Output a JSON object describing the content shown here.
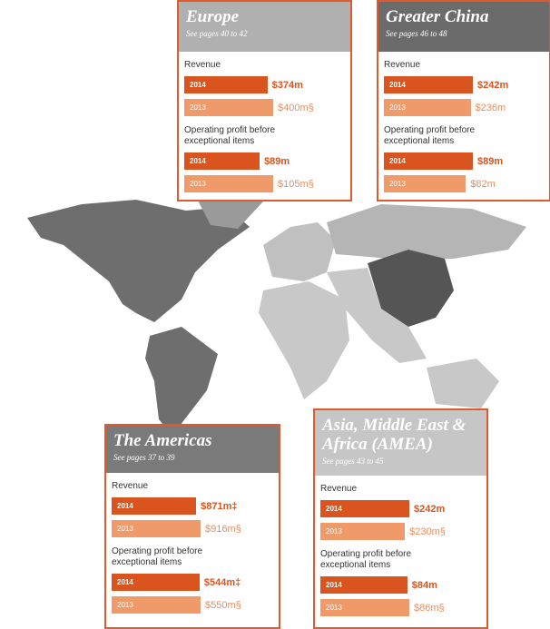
{
  "panels": [
    {
      "title": "Europe",
      "subtitle": "See pages 40 to 42",
      "metrics": [
        {
          "label": "Revenue",
          "years": [
            "2014",
            "2013"
          ],
          "values": [
            374,
            400
          ],
          "value_labels": [
            "$374m",
            "$400m§"
          ]
        },
        {
          "label": "Operating profit before exceptional items",
          "years": [
            "2014",
            "2013"
          ],
          "values": [
            89,
            105
          ],
          "value_labels": [
            "$89m",
            "$105m§"
          ]
        }
      ]
    },
    {
      "title": "Greater China",
      "subtitle": "See pages 46 to 48",
      "metrics": [
        {
          "label": "Revenue",
          "years": [
            "2014",
            "2013"
          ],
          "values": [
            242,
            236
          ],
          "value_labels": [
            "$242m",
            "$236m"
          ]
        },
        {
          "label": "Operating profit before exceptional items",
          "years": [
            "2014",
            "2013"
          ],
          "values": [
            89,
            82
          ],
          "value_labels": [
            "$89m",
            "$82m"
          ]
        }
      ]
    },
    {
      "title": "The Americas",
      "subtitle": "See pages 37 to 39",
      "metrics": [
        {
          "label": "Revenue",
          "years": [
            "2014",
            "2013"
          ],
          "values": [
            871,
            916
          ],
          "value_labels": [
            "$871m‡",
            "$916m§"
          ]
        },
        {
          "label": "Operating profit before exceptional items",
          "years": [
            "2014",
            "2013"
          ],
          "values": [
            544,
            550
          ],
          "value_labels": [
            "$544m‡",
            "$550m§"
          ]
        }
      ]
    },
    {
      "title": "Asia, Middle East & Africa (AMEA)",
      "subtitle": "See pages 43 to 45",
      "metrics": [
        {
          "label": "Revenue",
          "years": [
            "2014",
            "2013"
          ],
          "values": [
            242,
            230
          ],
          "value_labels": [
            "$242m",
            "$230m§"
          ]
        },
        {
          "label": "Operating profit before exceptional items",
          "years": [
            "2014",
            "2013"
          ],
          "values": [
            84,
            86
          ],
          "value_labels": [
            "$84m",
            "$86m§"
          ]
        }
      ]
    }
  ]
}
